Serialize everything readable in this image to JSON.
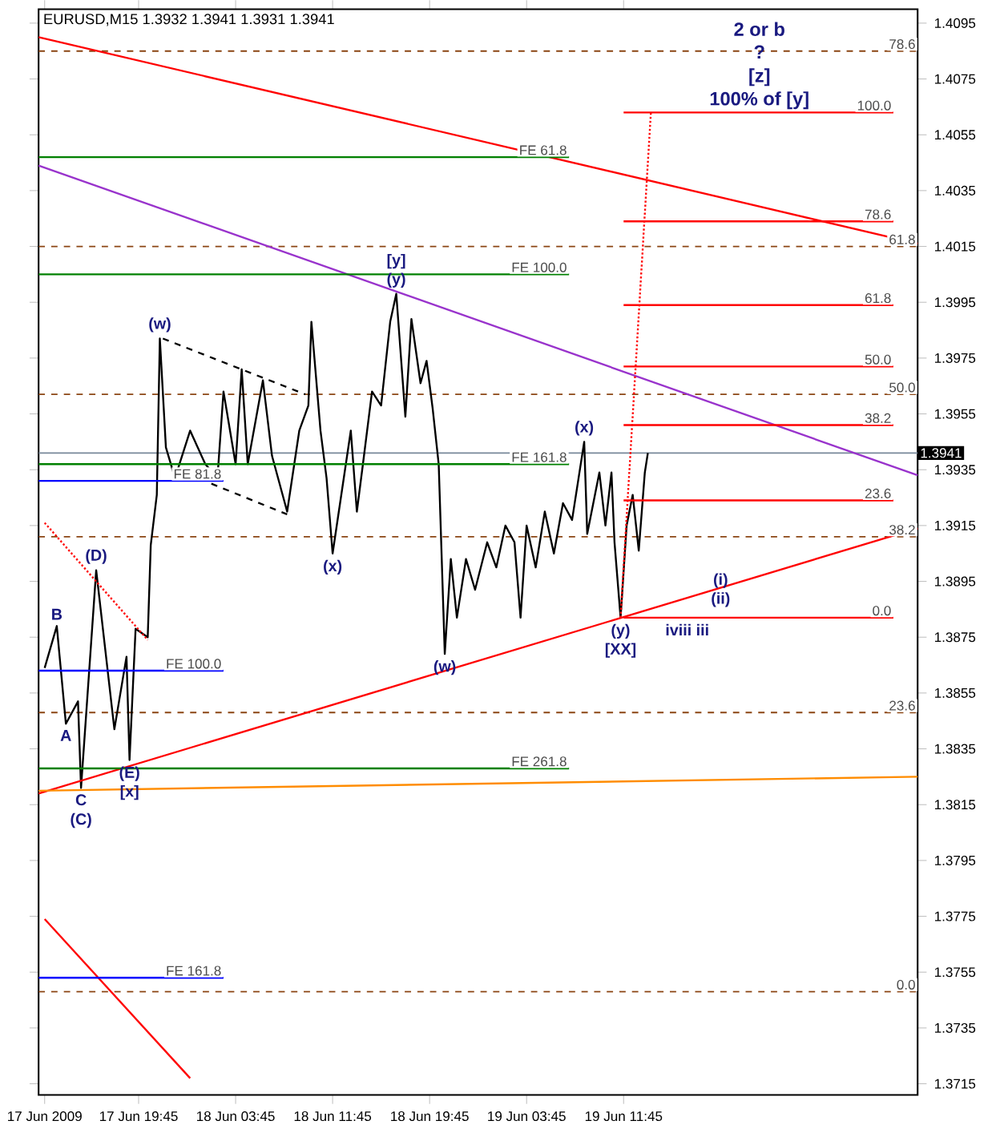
{
  "chart_data": {
    "type": "line",
    "title": "EURUSD,M15 1.3932 1.3941 1.3931 1.3941",
    "xlim": [
      "2009-06-17T11:30",
      "2009-06-20T12:00"
    ],
    "ylim": [
      1.3711,
      1.41
    ],
    "xticks": [
      {
        "value": "2009-06-17T12:00",
        "label": "17 Jun 2009"
      },
      {
        "value": "2009-06-17T19:45",
        "label": "17 Jun 19:45"
      },
      {
        "value": "2009-06-18T03:45",
        "label": "18 Jun 03:45"
      },
      {
        "value": "2009-06-18T11:45",
        "label": "18 Jun 11:45"
      },
      {
        "value": "2009-06-18T19:45",
        "label": "18 Jun 19:45"
      },
      {
        "value": "2009-06-19T03:45",
        "label": "19 Jun 03:45"
      },
      {
        "value": "2009-06-19T11:45",
        "label": "19 Jun 11:45"
      }
    ],
    "yticks": [
      1.3715,
      1.3735,
      1.3755,
      1.3775,
      1.3795,
      1.3815,
      1.3835,
      1.3855,
      1.3875,
      1.3895,
      1.3915,
      1.3935,
      1.3955,
      1.3975,
      1.3995,
      1.4015,
      1.4035,
      1.4055,
      1.4075,
      1.4095
    ],
    "series": [
      {
        "color": "#000000",
        "x": [
          "2009-06-17T12:00",
          "2009-06-17T13:00",
          "2009-06-17T13:45",
          "2009-06-17T14:45",
          "2009-06-17T15:00",
          "2009-06-17T16:15",
          "2009-06-17T17:45",
          "2009-06-17T18:45",
          "2009-06-17T19:00",
          "2009-06-17T19:30",
          "2009-06-17T20:30",
          "2009-06-17T20:45",
          "2009-06-17T21:15",
          "2009-06-17T21:30",
          "2009-06-17T22:00",
          "2009-06-17T22:45",
          "2009-06-18T00:00",
          "2009-06-18T01:15",
          "2009-06-18T02:15",
          "2009-06-18T02:45",
          "2009-06-18T03:45",
          "2009-06-18T04:15",
          "2009-06-18T04:45",
          "2009-06-18T06:00",
          "2009-06-18T06:45",
          "2009-06-18T08:00",
          "2009-06-18T09:00",
          "2009-06-18T09:45",
          "2009-06-18T10:00",
          "2009-06-18T10:45",
          "2009-06-18T11:15",
          "2009-06-18T11:45",
          "2009-06-18T13:15",
          "2009-06-18T13:45",
          "2009-06-18T14:15",
          "2009-06-18T15:00",
          "2009-06-18T15:45",
          "2009-06-18T16:30",
          "2009-06-18T17:00",
          "2009-06-18T17:45",
          "2009-06-18T18:15",
          "2009-06-18T19:00",
          "2009-06-18T19:30",
          "2009-06-18T20:00",
          "2009-06-18T20:30",
          "2009-06-18T21:00",
          "2009-06-18T21:30",
          "2009-06-18T22:00",
          "2009-06-18T22:45",
          "2009-06-18T23:30",
          "2009-06-19T00:30",
          "2009-06-19T01:15",
          "2009-06-19T02:00",
          "2009-06-19T02:45",
          "2009-06-19T03:15",
          "2009-06-19T03:45",
          "2009-06-19T04:30",
          "2009-06-19T05:15",
          "2009-06-19T06:00",
          "2009-06-19T06:45",
          "2009-06-19T07:30",
          "2009-06-19T08:30",
          "2009-06-19T08:45",
          "2009-06-19T09:45",
          "2009-06-19T10:15",
          "2009-06-19T10:45",
          "2009-06-19T11:00",
          "2009-06-19T11:30",
          "2009-06-19T12:00",
          "2009-06-19T12:30",
          "2009-06-19T13:00",
          "2009-06-19T13:30",
          "2009-06-19T13:45"
        ],
        "values": [
          1.3864,
          1.3879,
          1.3844,
          1.3852,
          1.3821,
          1.3899,
          1.3842,
          1.3868,
          1.3831,
          1.3878,
          1.3875,
          1.3908,
          1.3926,
          1.3982,
          1.3943,
          1.3932,
          1.3949,
          1.3937,
          1.3932,
          1.3963,
          1.3937,
          1.3971,
          1.3937,
          1.3967,
          1.394,
          1.392,
          1.3949,
          1.3958,
          1.3988,
          1.3949,
          1.3932,
          1.3905,
          1.3949,
          1.392,
          1.3937,
          1.3963,
          1.3958,
          1.3988,
          1.3998,
          1.3954,
          1.3989,
          1.3966,
          1.3974,
          1.3957,
          1.3937,
          1.3869,
          1.3903,
          1.3882,
          1.3903,
          1.3892,
          1.3909,
          1.39,
          1.3915,
          1.3909,
          1.3882,
          1.3915,
          1.39,
          1.392,
          1.3905,
          1.3923,
          1.3917,
          1.3945,
          1.3912,
          1.3934,
          1.3915,
          1.3934,
          1.3909,
          1.3882,
          1.3915,
          1.3926,
          1.3906,
          1.3934,
          1.3941
        ]
      },
      {
        "color": "#ff0000",
        "x": [
          "2009-06-17T11:30",
          "2009-06-20T12:00"
        ],
        "values": [
          1.409,
          1.4016
        ]
      },
      {
        "color": "#9933cc",
        "x": [
          "2009-06-17T11:30",
          "2009-06-20T12:00"
        ],
        "values": [
          1.4044,
          1.3933
        ]
      },
      {
        "color": "#ff0000",
        "x": [
          "2009-06-17T11:30",
          "2009-06-20T12:00"
        ],
        "values": [
          1.3819,
          1.3914
        ]
      },
      {
        "color": "#ff8c00",
        "x": [
          "2009-06-17T11:30",
          "2009-06-20T12:00"
        ],
        "values": [
          1.382,
          1.3825
        ]
      },
      {
        "color": "#ff0000",
        "x": [
          "2009-06-17T12:00",
          "2009-06-18T00:00"
        ],
        "values": [
          1.3774,
          1.3717
        ]
      },
      {
        "color": "#ff0000",
        "line_style": "dotted",
        "x": [
          "2009-06-17T12:00",
          "2009-06-17T20:30"
        ],
        "values": [
          1.3916,
          1.3874
        ]
      },
      {
        "color": "#000000",
        "line_style": "dashed",
        "x": [
          "2009-06-17T21:45",
          "2009-06-18T09:30"
        ],
        "values": [
          1.3982,
          1.3962
        ]
      },
      {
        "color": "#000000",
        "line_style": "dashed",
        "x": [
          "2009-06-18T01:45",
          "2009-06-18T08:00"
        ],
        "values": [
          1.393,
          1.3919
        ]
      },
      {
        "color": "#ff0000",
        "line_style": "dotted",
        "x": [
          "2009-06-19T11:30",
          "2009-06-19T14:00"
        ],
        "values": [
          1.3882,
          1.4063
        ]
      },
      {
        "color": "#008000",
        "x": [
          "2009-06-17T11:30",
          "2009-06-19T07:15"
        ],
        "values": [
          1.4047,
          1.4047
        ]
      },
      {
        "color": "#008000",
        "x": [
          "2009-06-17T11:30",
          "2009-06-19T07:15"
        ],
        "values": [
          1.4005,
          1.4005
        ]
      },
      {
        "color": "#008000",
        "x": [
          "2009-06-17T11:30",
          "2009-06-19T07:15"
        ],
        "values": [
          1.3937,
          1.3937
        ]
      },
      {
        "color": "#008000",
        "x": [
          "2009-06-17T11:30",
          "2009-06-19T07:15"
        ],
        "values": [
          1.3828,
          1.3828
        ]
      },
      {
        "color": "#0000ff",
        "x": [
          "2009-06-17T11:30",
          "2009-06-18T02:45"
        ],
        "values": [
          1.3931,
          1.3931
        ]
      },
      {
        "color": "#0000ff",
        "x": [
          "2009-06-17T11:30",
          "2009-06-18T02:45"
        ],
        "values": [
          1.3863,
          1.3863
        ]
      },
      {
        "color": "#0000ff",
        "x": [
          "2009-06-17T11:30",
          "2009-06-18T02:45"
        ],
        "values": [
          1.3753,
          1.3753
        ]
      },
      {
        "color": "#ff0000",
        "x": [
          "2009-06-19T11:45",
          "2009-06-20T10:00"
        ],
        "values": [
          1.4063,
          1.4063
        ]
      },
      {
        "color": "#ff0000",
        "x": [
          "2009-06-19T11:45",
          "2009-06-20T10:00"
        ],
        "values": [
          1.4024,
          1.4024
        ]
      },
      {
        "color": "#ff0000",
        "x": [
          "2009-06-19T11:45",
          "2009-06-20T10:00"
        ],
        "values": [
          1.3994,
          1.3994
        ]
      },
      {
        "color": "#ff0000",
        "x": [
          "2009-06-19T11:45",
          "2009-06-20T10:00"
        ],
        "values": [
          1.3972,
          1.3972
        ]
      },
      {
        "color": "#ff0000",
        "x": [
          "2009-06-19T11:45",
          "2009-06-20T10:00"
        ],
        "values": [
          1.3951,
          1.3951
        ]
      },
      {
        "color": "#ff0000",
        "x": [
          "2009-06-19T11:45",
          "2009-06-20T10:00"
        ],
        "values": [
          1.3924,
          1.3924
        ]
      },
      {
        "color": "#ff0000",
        "x": [
          "2009-06-19T11:45",
          "2009-06-20T10:00"
        ],
        "values": [
          1.3882,
          1.3882
        ]
      }
    ],
    "ref_lines": [
      {
        "axis": "y",
        "value": 1.4085,
        "color": "#8b4513",
        "line_style": "dashed"
      },
      {
        "axis": "y",
        "value": 1.4015,
        "color": "#8b4513",
        "line_style": "dashed"
      },
      {
        "axis": "y",
        "value": 1.3962,
        "color": "#8b4513",
        "line_style": "dashed"
      },
      {
        "axis": "y",
        "value": 1.3911,
        "color": "#8b4513",
        "line_style": "dashed"
      },
      {
        "axis": "y",
        "value": 1.3848,
        "color": "#8b4513",
        "line_style": "dashed"
      },
      {
        "axis": "y",
        "value": 1.3748,
        "color": "#8b4513",
        "line_style": "dashed"
      },
      {
        "axis": "y",
        "value": 1.3941,
        "label": "1.3941",
        "color": "#778899",
        "line_style": "solid"
      }
    ],
    "annotations": [
      "2 or b",
      "?",
      "[z]",
      "100% of [y]",
      {
        "text": "(w)",
        "x": "2009-06-17T21:30",
        "y": 1.3982
      },
      {
        "text": "(x)",
        "x": "2009-06-18T11:45",
        "y": 1.3905
      },
      {
        "text": "(y)",
        "x": "2009-06-18T17:00",
        "y": 1.3998
      },
      {
        "text": "[y]",
        "x": "2009-06-18T17:00",
        "y": 1.3998
      },
      {
        "text": "(w)",
        "x": "2009-06-18T21:00",
        "y": 1.3869
      },
      {
        "text": "(x)",
        "x": "2009-06-19T08:30",
        "y": 1.3945
      },
      {
        "text": "(y)",
        "x": "2009-06-19T11:30",
        "y": 1.3882
      },
      {
        "text": "[XX]",
        "x": "2009-06-19T11:30",
        "y": 1.3882
      },
      {
        "text": "(i)",
        "x": "2009-06-19T19:45",
        "y": 1.3893
      },
      {
        "text": "(ii)",
        "x": "2009-06-19T19:45",
        "y": 1.3893
      },
      {
        "text": "iviii iii",
        "x": "2009-06-19T17:00",
        "y": 1.3882
      },
      {
        "text": "(D)",
        "x": "2009-06-17T16:15",
        "y": 1.3899
      },
      {
        "text": "B",
        "x": "2009-06-17T13:00",
        "y": 1.3879
      },
      {
        "text": "A",
        "x": "2009-06-17T13:45",
        "y": 1.3844
      },
      {
        "text": "C",
        "x": "2009-06-17T15:00",
        "y": 1.3821
      },
      {
        "text": "(C)",
        "x": "2009-06-17T15:00",
        "y": 1.3821
      },
      {
        "text": "(E)",
        "x": "2009-06-17T19:00",
        "y": 1.3831
      },
      {
        "text": "[x]",
        "x": "2009-06-17T19:00",
        "y": 1.3831
      },
      {
        "text": "FE 61.8",
        "x": "2009-06-19T07:15",
        "y": 1.4047
      },
      {
        "text": "FE 100.0",
        "x": "2009-06-19T07:15",
        "y": 1.4005
      },
      {
        "text": "FE 161.8",
        "x": "2009-06-19T07:15",
        "y": 1.3937
      },
      {
        "text": "FE 261.8",
        "x": "2009-06-19T07:15",
        "y": 1.3828
      },
      {
        "text": "FE 81.8",
        "x": "2009-06-18T02:45",
        "y": 1.3931
      },
      {
        "text": "FE 100.0",
        "x": "2009-06-18T02:45",
        "y": 1.3863
      },
      {
        "text": "FE 161.8",
        "x": "2009-06-18T02:45",
        "y": 1.3753
      },
      {
        "text": "100.0",
        "x": "2009-06-20T10:00",
        "y": 1.4063
      },
      {
        "text": "78.6",
        "x": "2009-06-20T10:00",
        "y": 1.4024
      },
      {
        "text": "61.8",
        "x": "2009-06-20T10:00",
        "y": 1.3994
      },
      {
        "text": "50.0",
        "x": "2009-06-20T10:00",
        "y": 1.3972
      },
      {
        "text": "38.2",
        "x": "2009-06-20T10:00",
        "y": 1.3951
      },
      {
        "text": "23.6",
        "x": "2009-06-20T10:00",
        "y": 1.3924
      },
      {
        "text": "0.0",
        "x": "2009-06-20T10:00",
        "y": 1.3882
      },
      {
        "text": "78.6",
        "x": "2009-06-20T12:00",
        "y": 1.4085
      },
      {
        "text": "61.8",
        "x": "2009-06-20T12:00",
        "y": 1.4015
      },
      {
        "text": "50.0",
        "x": "2009-06-20T12:00",
        "y": 1.3962
      },
      {
        "text": "38.2",
        "x": "2009-06-20T12:00",
        "y": 1.3911
      },
      {
        "text": "23.6",
        "x": "2009-06-20T12:00",
        "y": 1.3848
      },
      {
        "text": "0.0",
        "x": "2009-06-20T12:00",
        "y": 1.3748
      }
    ]
  }
}
